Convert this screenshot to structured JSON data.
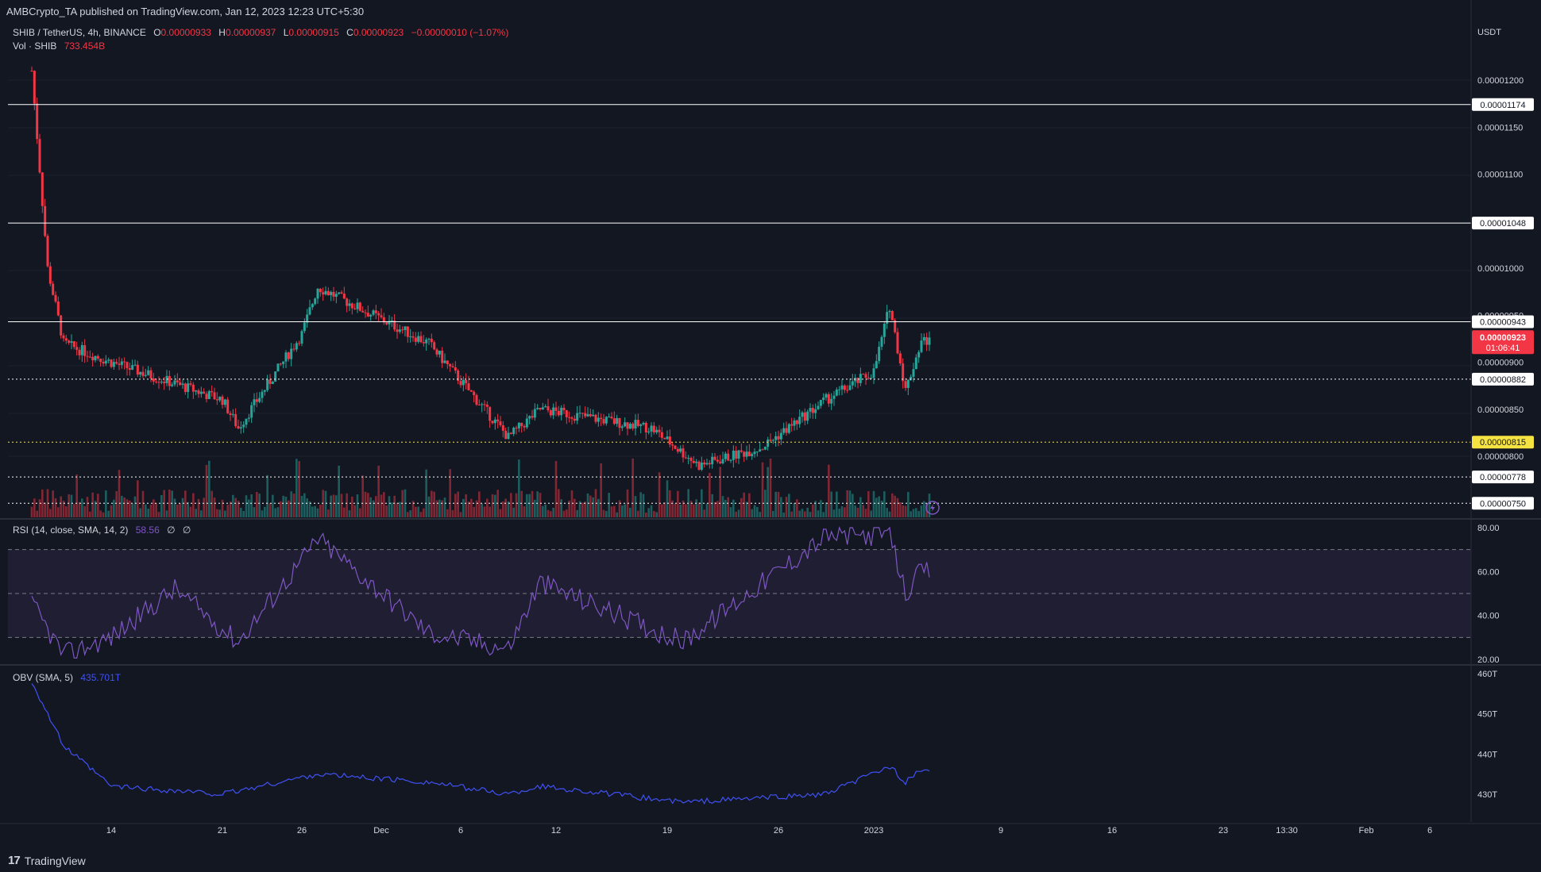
{
  "publish_info": "AMBCrypto_TA published on TradingView.com, Jan 12, 2023 12:23 UTC+5:30",
  "branding": {
    "logo_text": "TradingView",
    "logo_mark": "17"
  },
  "colors": {
    "background": "#131722",
    "up": "#26a69a",
    "down": "#f23645",
    "rsi_line": "#7e57c2",
    "rsi_band": "#2a2440",
    "obv_line": "#3f51f5",
    "level_line": "#ffffff",
    "highlight_level": "#f5e342",
    "current_price_bg": "#f23645"
  },
  "main_legend": {
    "symbol": "SHIB / TetherUS, 4h, BINANCE",
    "open_label": "O",
    "open": "0.00000933",
    "high_label": "H",
    "high": "0.00000937",
    "low_label": "L",
    "low": "0.00000915",
    "close_label": "C",
    "close": "0.00000923",
    "change": "−0.00000010 (−1.07%)",
    "volume_label": "Vol · SHIB",
    "volume": "733.454B"
  },
  "rsi_legend": {
    "label": "RSI (14, close, SMA, 14, 2)",
    "value": "58.56",
    "extra1": "∅",
    "extra2": "∅"
  },
  "obv_legend": {
    "label": "OBV (SMA, 5)",
    "value": "435.701T"
  },
  "price_axis": {
    "currency": "USDT",
    "ticks": [
      "0.00001200",
      "0.00001150",
      "0.00001100",
      "0.00001000",
      "0.00000950",
      "0.00000900",
      "0.00000850",
      "0.00000800"
    ]
  },
  "levels": [
    {
      "value": "0.00001174",
      "style": "solid"
    },
    {
      "value": "0.00001048",
      "style": "solid"
    },
    {
      "value": "0.00000943",
      "style": "solid"
    },
    {
      "value": "0.00000882",
      "style": "dotted"
    },
    {
      "value": "0.00000815",
      "style": "dotted-yellow"
    },
    {
      "value": "0.00000778",
      "style": "dotted"
    },
    {
      "value": "0.00000750",
      "style": "dotted"
    }
  ],
  "current_price": {
    "value": "0.00000923",
    "countdown": "01:06:41"
  },
  "rsi_axis": {
    "ticks": [
      "80.00",
      "60.00",
      "40.00",
      "20.00"
    ]
  },
  "obv_axis": {
    "ticks": [
      "460T",
      "450T",
      "440T",
      "430T"
    ]
  },
  "time_axis": {
    "ticks": [
      "14",
      "21",
      "26",
      "Dec",
      "6",
      "12",
      "19",
      "26",
      "2023",
      "9",
      "16",
      "23",
      "13:30",
      "Feb",
      "6"
    ]
  },
  "chart_data": {
    "type": "candlestick",
    "symbol": "SHIB / TetherUS",
    "interval": "4h",
    "exchange": "BINANCE",
    "price_key_points": [
      {
        "time": "Nov 9",
        "price": 1.21e-05
      },
      {
        "time": "Nov 10",
        "price": 1e-05
      },
      {
        "time": "Nov 11",
        "price": 9.2e-06
      },
      {
        "time": "Nov 14",
        "price": 9e-06
      },
      {
        "time": "Nov 21",
        "price": 8.6e-06
      },
      {
        "time": "Nov 22",
        "price": 8.3e-06
      },
      {
        "time": "Nov 26",
        "price": 9.3e-06
      },
      {
        "time": "Dec 5",
        "price": 9.8e-06
      },
      {
        "time": "Dec 12",
        "price": 9.2e-06
      },
      {
        "time": "Dec 17",
        "price": 8.2e-06
      },
      {
        "time": "Dec 19",
        "price": 8.5e-06
      },
      {
        "time": "Dec 26",
        "price": 8.3e-06
      },
      {
        "time": "Dec 29",
        "price": 7.9e-06
      },
      {
        "time": "Jan 2",
        "price": 8.1e-06
      },
      {
        "time": "Jan 6",
        "price": 8.6e-06
      },
      {
        "time": "Jan 9",
        "price": 8.9e-06
      },
      {
        "time": "Jan 10",
        "price": 9.6e-06
      },
      {
        "time": "Jan 11",
        "price": 8.7e-06
      },
      {
        "time": "Jan 12",
        "price": 9.23e-06
      }
    ],
    "rsi_key_points": [
      {
        "time": "Nov 9",
        "value": 45
      },
      {
        "time": "Nov 11",
        "value": 22
      },
      {
        "time": "Nov 14",
        "value": 30
      },
      {
        "time": "Nov 18",
        "value": 52
      },
      {
        "time": "Nov 22",
        "value": 28
      },
      {
        "time": "Nov 26",
        "value": 65
      },
      {
        "time": "Dec 5",
        "value": 75
      },
      {
        "time": "Dec 12",
        "value": 32
      },
      {
        "time": "Dec 17",
        "value": 25
      },
      {
        "time": "Dec 19",
        "value": 55
      },
      {
        "time": "Dec 28",
        "value": 28
      },
      {
        "time": "Jan 2",
        "value": 55
      },
      {
        "time": "Jan 6",
        "value": 76
      },
      {
        "time": "Jan 10",
        "value": 77
      },
      {
        "time": "Jan 11",
        "value": 50
      },
      {
        "time": "Jan 12",
        "value": 60
      }
    ],
    "rsi_bands": {
      "upper": 70,
      "middle": 50,
      "lower": 30
    },
    "obv_key_points": [
      {
        "time": "Nov 9",
        "value": 458
      },
      {
        "time": "Nov 11",
        "value": 442
      },
      {
        "time": "Nov 14",
        "value": 432
      },
      {
        "time": "Nov 21",
        "value": 430
      },
      {
        "time": "Dec 5",
        "value": 435
      },
      {
        "time": "Dec 12",
        "value": 433
      },
      {
        "time": "Dec 17",
        "value": 430
      },
      {
        "time": "Dec 19",
        "value": 432
      },
      {
        "time": "Dec 28",
        "value": 428
      },
      {
        "time": "Jan 6",
        "value": 430
      },
      {
        "time": "Jan 10",
        "value": 437
      },
      {
        "time": "Jan 11",
        "value": 433
      },
      {
        "time": "Jan 12",
        "value": 436
      }
    ]
  }
}
